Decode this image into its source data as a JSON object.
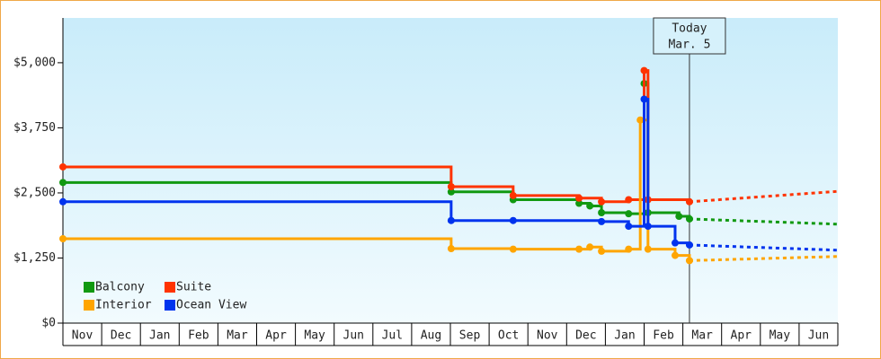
{
  "chart_data": {
    "type": "step",
    "categories": [
      "Nov",
      "Dec",
      "Jan",
      "Feb",
      "Mar",
      "Apr",
      "May",
      "Jun",
      "Jul",
      "Aug",
      "Sep",
      "Oct",
      "Nov",
      "Dec",
      "Jan",
      "Feb",
      "Mar",
      "Apr",
      "May",
      "Jun"
    ],
    "xlim": [
      0,
      20
    ],
    "ylim": [
      0,
      5860
    ],
    "yticks": [
      {
        "value": 0,
        "label": "$0"
      },
      {
        "value": 1250,
        "label": "$1,250"
      },
      {
        "value": 2500,
        "label": "$2,500"
      },
      {
        "value": 3750,
        "label": "$3,750"
      },
      {
        "value": 5000,
        "label": "$5,000"
      }
    ],
    "series": [
      {
        "name": "Balcony",
        "color": "#119911",
        "x": [
          0,
          10.02,
          11.62,
          13.32,
          13.6,
          13.9,
          14.6,
          15.0,
          15.1,
          15.9,
          16.17
        ],
        "values": [
          2700,
          2520,
          2370,
          2300,
          2250,
          2120,
          2100,
          4600,
          2120,
          2050,
          2000
        ],
        "forecast_x": [
          16.17,
          20
        ],
        "forecast_values": [
          2000,
          1900
        ]
      },
      {
        "name": "Suite",
        "color": "#ff3300",
        "x": [
          0,
          10.02,
          11.62,
          13.32,
          13.9,
          14.6,
          15.0,
          15.1,
          16.17
        ],
        "values": [
          3000,
          2620,
          2450,
          2400,
          2330,
          2370,
          4850,
          2370,
          2330
        ],
        "forecast_x": [
          16.17,
          20
        ],
        "forecast_values": [
          2330,
          2530
        ]
      },
      {
        "name": "Interior",
        "color": "#ffa500",
        "x": [
          0,
          10.02,
          11.62,
          13.32,
          13.6,
          13.9,
          14.6,
          14.9,
          15.1,
          15.8,
          16.17
        ],
        "values": [
          1620,
          1430,
          1420,
          1420,
          1460,
          1380,
          1420,
          3900,
          1420,
          1300,
          1200
        ],
        "forecast_x": [
          16.17,
          20
        ],
        "forecast_values": [
          1200,
          1280
        ]
      },
      {
        "name": "Ocean View",
        "color": "#0033ee",
        "x": [
          0,
          10.02,
          11.62,
          13.9,
          14.6,
          15.0,
          15.1,
          15.8,
          16.17
        ],
        "values": [
          2330,
          1970,
          1970,
          1950,
          1860,
          4300,
          1860,
          1540,
          1500
        ],
        "forecast_x": [
          16.17,
          20
        ],
        "forecast_values": [
          1500,
          1400
        ]
      }
    ],
    "today": {
      "x": 16.17,
      "label": [
        "Today",
        "Mar. 5"
      ]
    },
    "legend": "lower-left"
  }
}
